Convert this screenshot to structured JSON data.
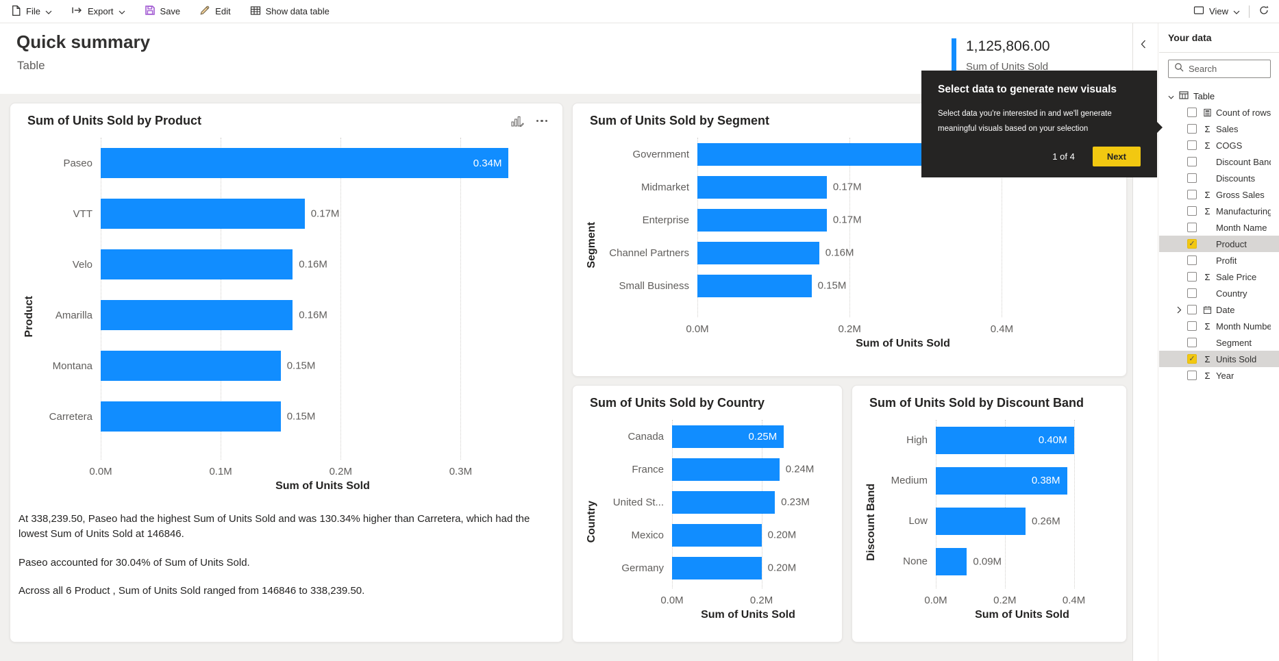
{
  "toolbar": {
    "file_label": "File",
    "export_label": "Export",
    "save_label": "Save",
    "edit_label": "Edit",
    "show_data_table_label": "Show data table",
    "view_label": "View"
  },
  "header": {
    "title": "Quick summary",
    "subtitle": "Table"
  },
  "kpi_card": {
    "value": "1,125,806.00",
    "label": "Sum of Units Sold"
  },
  "coach_tooltip": {
    "title": "Select data to generate new visuals",
    "body": "Select data you're interested in and we'll generate meaningful visuals based on your selection",
    "step": "1 of 4",
    "next_label": "Next"
  },
  "insights": [
    "At 338,239.50,  Paseo had the highest Sum of Units Sold and was 130.34% higher than  Carretera, which had the lowest Sum of Units Sold at 146846.",
    "Paseo accounted for 30.04% of Sum of Units Sold.",
    "Across all 6  Product , Sum of Units Sold ranged from 146846 to 338,239.50."
  ],
  "panel": {
    "title": "Your data",
    "search_placeholder": "Search",
    "table_label": "Table",
    "fields": [
      {
        "label": "Count of rows",
        "icon": "calculator",
        "checked": false
      },
      {
        "label": "Sales",
        "icon": "sigma",
        "checked": false
      },
      {
        "label": "COGS",
        "icon": "sigma",
        "checked": false
      },
      {
        "label": "Discount Band",
        "icon": "none",
        "checked": false
      },
      {
        "label": "Discounts",
        "icon": "none",
        "checked": false
      },
      {
        "label": "Gross Sales",
        "icon": "sigma",
        "checked": false
      },
      {
        "label": "Manufacturing ...",
        "icon": "sigma",
        "checked": false
      },
      {
        "label": "Month Name",
        "icon": "none",
        "checked": false
      },
      {
        "label": "Product",
        "icon": "none",
        "checked": true
      },
      {
        "label": "Profit",
        "icon": "none",
        "checked": false
      },
      {
        "label": "Sale Price",
        "icon": "sigma",
        "checked": false
      },
      {
        "label": "Country",
        "icon": "none",
        "checked": false
      },
      {
        "label": "Date",
        "icon": "calendar",
        "checked": false,
        "expandable": true
      },
      {
        "label": "Month Number",
        "icon": "sigma",
        "checked": false
      },
      {
        "label": "Segment",
        "icon": "none",
        "checked": false
      },
      {
        "label": "Units Sold",
        "icon": "sigma",
        "checked": true
      },
      {
        "label": "Year",
        "icon": "sigma",
        "checked": false
      }
    ]
  },
  "colors": {
    "bar_blue": "#118DFF",
    "accent_yellow": "#F2C811",
    "tooltip_bg": "#252423"
  },
  "chart_data": [
    {
      "id": "product",
      "type": "bar",
      "orientation": "horizontal",
      "title": "Sum of Units Sold by Product",
      "xlabel": "Sum of Units Sold",
      "ylabel": "Product",
      "axis_max": 0.37,
      "ticks": [
        {
          "value": 0,
          "label": "0.0M"
        },
        {
          "value": 0.1,
          "label": "0.1M"
        },
        {
          "value": 0.2,
          "label": "0.2M"
        },
        {
          "value": 0.3,
          "label": "0.3M"
        }
      ],
      "bars": [
        {
          "category": "Paseo",
          "value": 0.34,
          "label": "0.34M",
          "label_pos": "inside"
        },
        {
          "category": "VTT",
          "value": 0.17,
          "label": "0.17M",
          "label_pos": "outside"
        },
        {
          "category": "Velo",
          "value": 0.16,
          "label": "0.16M",
          "label_pos": "outside"
        },
        {
          "category": "Amarilla",
          "value": 0.16,
          "label": "0.16M",
          "label_pos": "outside"
        },
        {
          "category": "Montana",
          "value": 0.15,
          "label": "0.15M",
          "label_pos": "outside"
        },
        {
          "category": "Carretera",
          "value": 0.15,
          "label": "0.15M",
          "label_pos": "outside"
        }
      ]
    },
    {
      "id": "segment",
      "type": "bar",
      "orientation": "horizontal",
      "title": "Sum of Units Sold by Segment",
      "xlabel": "Sum of Units Sold",
      "ylabel": "Segment",
      "axis_max": 0.54,
      "ticks": [
        {
          "value": 0,
          "label": "0.0M"
        },
        {
          "value": 0.2,
          "label": "0.2M"
        },
        {
          "value": 0.4,
          "label": "0.4M"
        }
      ],
      "bars": [
        {
          "category": "Government",
          "value": 0.47,
          "label": null,
          "label_pos": "hidden"
        },
        {
          "category": "Midmarket",
          "value": 0.17,
          "label": "0.17M",
          "label_pos": "outside"
        },
        {
          "category": "Enterprise",
          "value": 0.17,
          "label": "0.17M",
          "label_pos": "outside"
        },
        {
          "category": "Channel Partners",
          "value": 0.16,
          "label": "0.16M",
          "label_pos": "outside"
        },
        {
          "category": "Small Business",
          "value": 0.15,
          "label": "0.15M",
          "label_pos": "outside"
        }
      ]
    },
    {
      "id": "country",
      "type": "bar",
      "orientation": "horizontal",
      "title": "Sum of Units Sold by Country",
      "xlabel": "Sum of Units Sold",
      "ylabel": "Country",
      "axis_max": 0.34,
      "ticks": [
        {
          "value": 0,
          "label": "0.0M"
        },
        {
          "value": 0.2,
          "label": "0.2M"
        }
      ],
      "bars": [
        {
          "category": "Canada",
          "value": 0.25,
          "label": "0.25M",
          "label_pos": "inside"
        },
        {
          "category": "France",
          "value": 0.24,
          "label": "0.24M",
          "label_pos": "outside"
        },
        {
          "category": "United St...",
          "value": 0.23,
          "label": "0.23M",
          "label_pos": "outside"
        },
        {
          "category": "Mexico",
          "value": 0.2,
          "label": "0.20M",
          "label_pos": "outside"
        },
        {
          "category": "Germany",
          "value": 0.2,
          "label": "0.20M",
          "label_pos": "outside"
        }
      ]
    },
    {
      "id": "discount",
      "type": "bar",
      "orientation": "horizontal",
      "title": "Sum of Units Sold by Discount Band",
      "xlabel": "Sum of Units Sold",
      "ylabel": "Discount Band",
      "axis_max": 0.5,
      "ticks": [
        {
          "value": 0,
          "label": "0.0M"
        },
        {
          "value": 0.2,
          "label": "0.2M"
        },
        {
          "value": 0.4,
          "label": "0.4M"
        }
      ],
      "bars": [
        {
          "category": "High",
          "value": 0.4,
          "label": "0.40M",
          "label_pos": "inside"
        },
        {
          "category": "Medium",
          "value": 0.38,
          "label": "0.38M",
          "label_pos": "inside"
        },
        {
          "category": "Low",
          "value": 0.26,
          "label": "0.26M",
          "label_pos": "outside"
        },
        {
          "category": "None",
          "value": 0.09,
          "label": "0.09M",
          "label_pos": "outside"
        }
      ]
    }
  ]
}
